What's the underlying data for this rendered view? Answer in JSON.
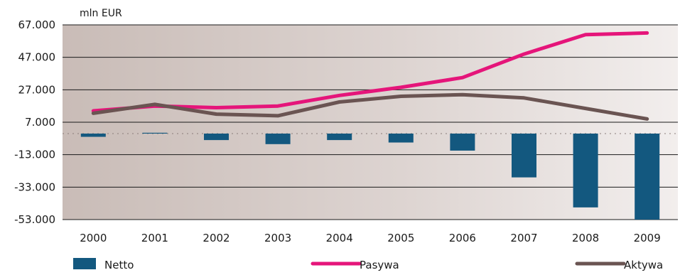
{
  "chart_data": {
    "type": "bar+line",
    "unit_label": "mln EUR",
    "categories": [
      "2000",
      "2001",
      "2002",
      "2003",
      "2004",
      "2005",
      "2006",
      "2007",
      "2008",
      "2009"
    ],
    "y_ticks": [
      "67.000",
      "47.000",
      "27.000",
      "7.000",
      "-13.000",
      "-33.000",
      "-53.000"
    ],
    "ylim": [
      -53000,
      67000
    ],
    "grid": true,
    "legend_position": "bottom",
    "series": [
      {
        "name": "Netto",
        "kind": "bar",
        "color": "#13587f",
        "values": [
          -2000,
          500,
          -4000,
          -6500,
          -4000,
          -5500,
          -10500,
          -27000,
          -45500,
          -53000
        ]
      },
      {
        "name": "Pasywa",
        "kind": "line",
        "color": "#e5157a",
        "values": [
          14000,
          17000,
          16000,
          17000,
          23500,
          28500,
          34500,
          49000,
          61000,
          62000
        ]
      },
      {
        "name": "Aktywa",
        "kind": "line",
        "color": "#6a5452",
        "values": [
          12500,
          18000,
          12000,
          11000,
          19500,
          23000,
          24000,
          22000,
          15500,
          9000
        ]
      }
    ]
  }
}
